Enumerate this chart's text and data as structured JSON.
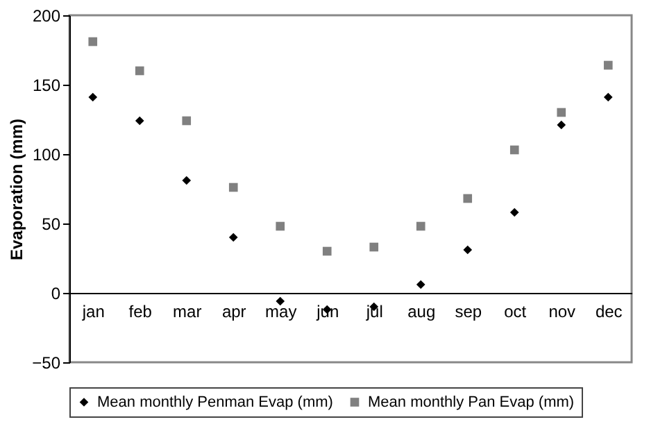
{
  "chart_data": {
    "type": "scatter",
    "ylabel": "Evaporation (mm)",
    "categories": [
      "jan",
      "feb",
      "mar",
      "apr",
      "may",
      "jun",
      "jul",
      "aug",
      "sep",
      "oct",
      "nov",
      "dec"
    ],
    "series": [
      {
        "name": "Mean monthly Penman Evap (mm)",
        "color": "#000000",
        "marker": "diamond",
        "values": [
          141,
          124,
          81,
          40,
          -6,
          -12,
          -10,
          6,
          31,
          58,
          121,
          141
        ]
      },
      {
        "name": "Mean monthly Pan Evap (mm)",
        "color": "#808080",
        "marker": "square",
        "values": [
          181,
          160,
          124,
          76,
          48,
          30,
          33,
          48,
          68,
          103,
          130,
          164
        ]
      }
    ],
    "ylim": [
      -50,
      200
    ],
    "yticks": [
      -50,
      0,
      50,
      100,
      150,
      200
    ],
    "grid": false,
    "legend": "bottom"
  }
}
